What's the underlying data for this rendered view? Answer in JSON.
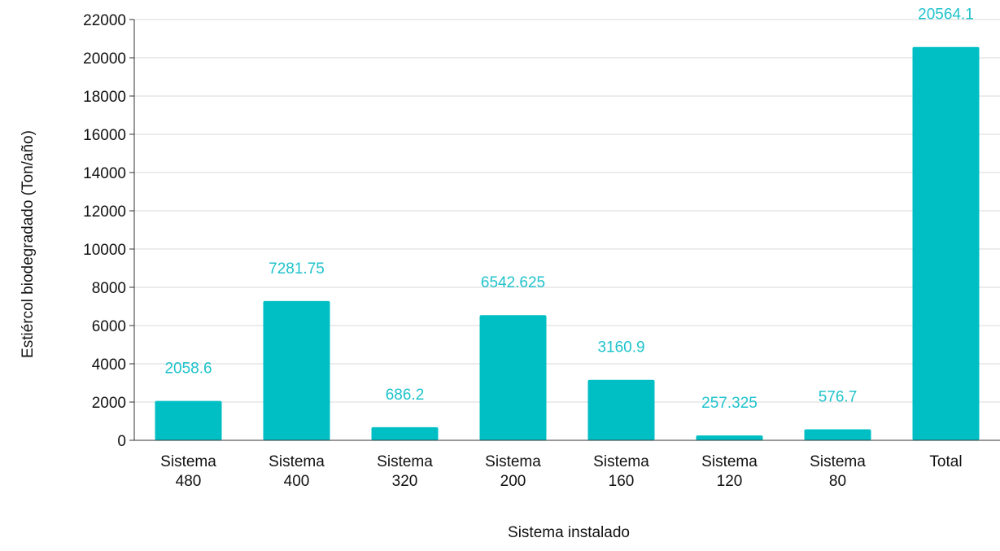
{
  "chart_data": {
    "type": "bar",
    "categories": [
      [
        "Sistema",
        "480"
      ],
      [
        "Sistema",
        "400"
      ],
      [
        "Sistema",
        "320"
      ],
      [
        "Sistema",
        "200"
      ],
      [
        "Sistema",
        "160"
      ],
      [
        "Sistema",
        "120"
      ],
      [
        "Sistema",
        "80"
      ],
      [
        "Total"
      ]
    ],
    "values": [
      2058.6,
      7281.75,
      686.2,
      6542.625,
      3160.9,
      257.325,
      576.7,
      20564.1
    ],
    "data_labels": [
      "2058.6",
      "7281.75",
      "686.2",
      "6542.625",
      "3160.9",
      "257.325",
      "576.7",
      "20564.1"
    ],
    "title": "",
    "xlabel": "Sistema instalado",
    "ylabel": "Estiércol biodegradado (Ton/año)",
    "ylim": [
      0,
      22000
    ],
    "yticks": [
      0,
      2000,
      4000,
      6000,
      8000,
      10000,
      12000,
      14000,
      16000,
      18000,
      20000,
      22000
    ],
    "grid": true,
    "legend": "none",
    "colors": {
      "bar": "#00BFC4",
      "data_label": "#1FC3CC",
      "grid": "#d9d9d9",
      "axis": "#333333"
    }
  }
}
